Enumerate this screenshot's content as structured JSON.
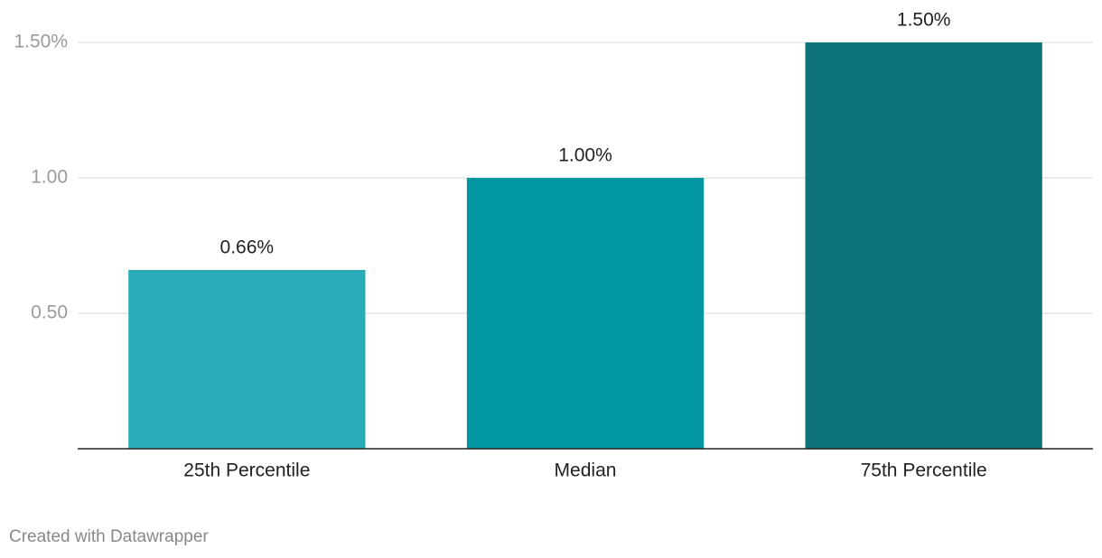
{
  "chart_data": {
    "type": "bar",
    "categories": [
      "25th Percentile",
      "Median",
      "75th Percentile"
    ],
    "values": [
      0.66,
      1.0,
      1.5
    ],
    "value_labels": [
      "0.66%",
      "1.00%",
      "1.50%"
    ],
    "colors": [
      "#2aacb8",
      "#0296a3",
      "#0f737c"
    ],
    "ylim": [
      0,
      1.5
    ],
    "yticks": [
      {
        "value": 0.5,
        "label": "0.50"
      },
      {
        "value": 1,
        "label": "1.00"
      },
      {
        "value": 1.5,
        "label": "1.50%"
      }
    ],
    "grid": true,
    "footer": "Created with Datawrapper"
  }
}
